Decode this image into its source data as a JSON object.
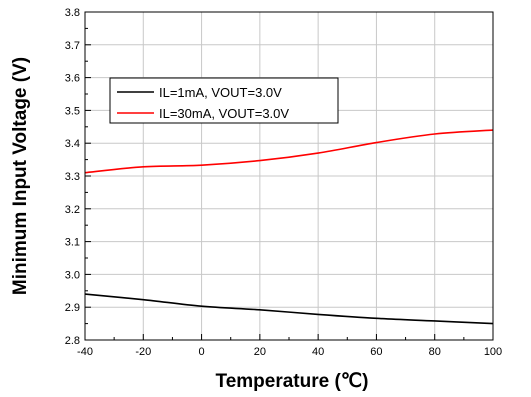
{
  "chart_data": {
    "type": "line",
    "title": "",
    "xlabel": "Temperature (℃)",
    "ylabel": "Minimum Input Voltage (V)",
    "xlim": [
      -40,
      100
    ],
    "ylim": [
      2.8,
      3.8
    ],
    "xticks": [
      "-40",
      "-20",
      "0",
      "20",
      "40",
      "60",
      "80",
      "100"
    ],
    "yticks": [
      "2.8",
      "2.9",
      "3.0",
      "3.1",
      "3.2",
      "3.3",
      "3.4",
      "3.5",
      "3.6",
      "3.7",
      "3.8"
    ],
    "grid": true,
    "legend_position": "upper-left",
    "series": [
      {
        "name": "IL=1mA, VOUT=3.0V",
        "color": "#000000",
        "x": [
          -40,
          -20,
          0,
          20,
          40,
          60,
          80,
          100
        ],
        "y": [
          2.94,
          2.923,
          2.903,
          2.892,
          2.878,
          2.866,
          2.858,
          2.85
        ]
      },
      {
        "name": "IL=30mA, VOUT=3.0V",
        "color": "#ff0000",
        "x": [
          -40,
          -20,
          0,
          20,
          40,
          60,
          80,
          100
        ],
        "y": [
          3.31,
          3.328,
          3.333,
          3.347,
          3.37,
          3.402,
          3.428,
          3.44
        ]
      }
    ]
  }
}
